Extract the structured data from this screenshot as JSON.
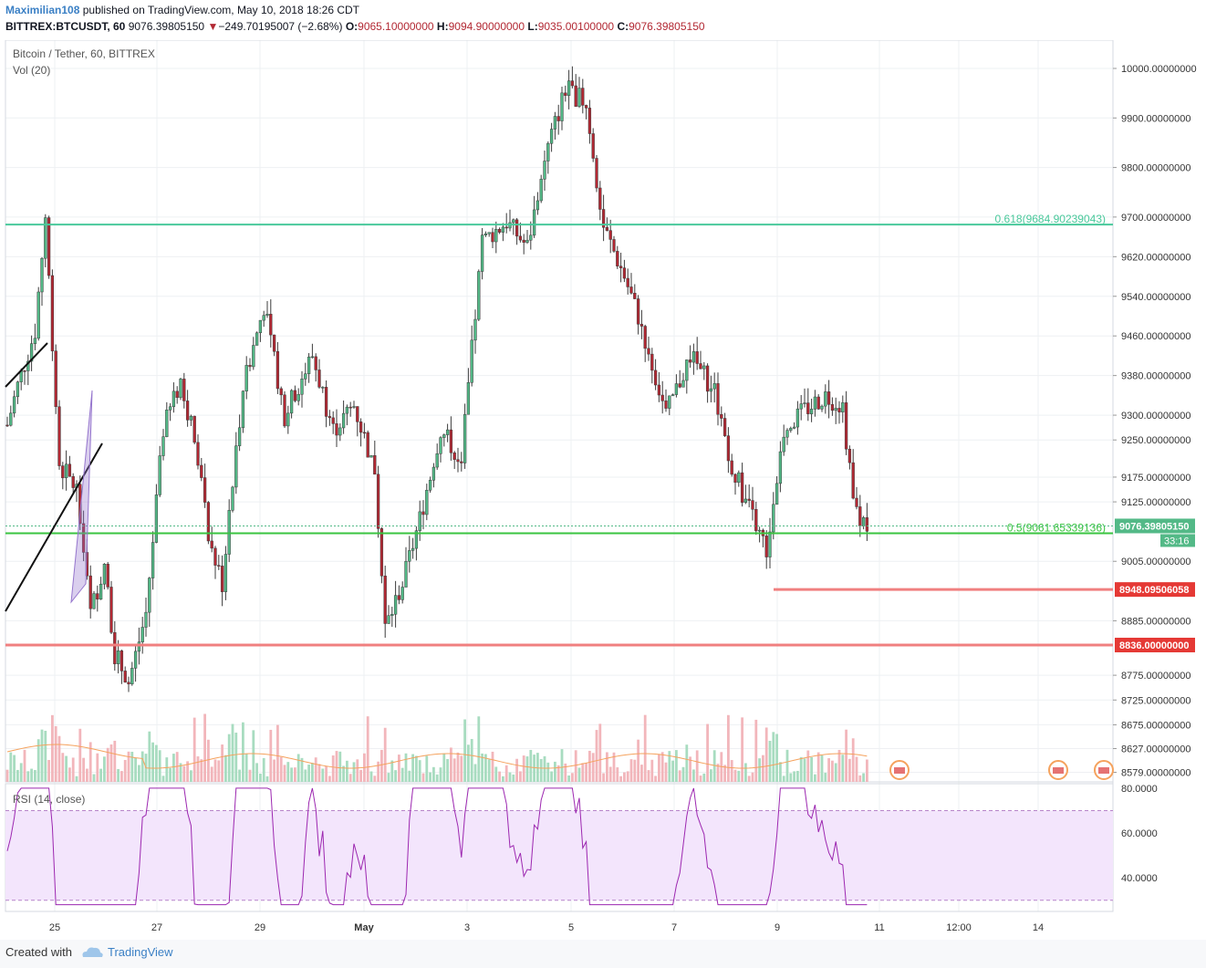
{
  "header": {
    "author": "Maximilian108",
    "published": "published on TradingView.com, May 10, 2018 18:26 CDT",
    "symbol": "BITTREX:BTCUSDT, 60",
    "last": "9076.39805150",
    "change_arrow": "▼",
    "change": "−249.70195007 (−2.68%)",
    "o_label": "O:",
    "o": "9065.10000000",
    "h_label": "H:",
    "h": "9094.90000000",
    "l_label": "L:",
    "l": "9035.00100000",
    "c_label": "C:",
    "c": "9076.39805150"
  },
  "pane": {
    "title": "Bitcoin / Tether, 60, BITTREX",
    "vol": "Vol (20)",
    "rsi_title": "RSI (14, close)"
  },
  "footer": {
    "created": "Created with",
    "brand": "TradingView",
    "brand_icon": "tradingview-cloud-icon"
  },
  "colors": {
    "up": "#53b987",
    "down": "#b22833",
    "fib618": "#49c99b",
    "fib05": "#3ac440",
    "support": "#f08080",
    "rsi": "#9c27b0",
    "rsi_band": "#f3e5fc"
  },
  "chart_data": {
    "type": "candlestick",
    "price_axis": {
      "ylim": [
        8579,
        10020
      ],
      "tick_labels": [
        "10000.00000000",
        "9900.00000000",
        "9800.00000000",
        "9700.00000000",
        "9620.00000000",
        "9540.00000000",
        "9460.00000000",
        "9380.00000000",
        "9300.00000000",
        "9250.00000000",
        "9175.00000000",
        "9125.00000000",
        "9005.00000000",
        "8885.00000000",
        "8775.00000000",
        "8725.00000000",
        "8675.00000000",
        "8627.00000000",
        "8579.00000000"
      ]
    },
    "time_axis": {
      "tick_labels": [
        "25",
        "27",
        "29",
        "May",
        "3",
        "5",
        "7",
        "9",
        "11",
        "12:00",
        "14"
      ]
    },
    "horizontal_levels": [
      {
        "label": "0.618(9684.90239043)",
        "value": 9684.90239043
      },
      {
        "label": "0.5(9061.65339136)",
        "value": 9061.65339136
      },
      {
        "label": "8948.09506058",
        "value": 8948.09506058
      },
      {
        "label": "8836.00000000",
        "value": 8836.0
      }
    ],
    "last_price_label": "9076.39805150",
    "countdown": "33:16",
    "anchor_points": [
      {
        "t": 0,
        "p": 9280
      },
      {
        "t": 3,
        "p": 9360
      },
      {
        "t": 8,
        "p": 9470
      },
      {
        "t": 11,
        "p": 9700
      },
      {
        "t": 15,
        "p": 9200
      },
      {
        "t": 20,
        "p": 9150
      },
      {
        "t": 24,
        "p": 8900
      },
      {
        "t": 28,
        "p": 9000
      },
      {
        "t": 31,
        "p": 8820
      },
      {
        "t": 35,
        "p": 8760
      },
      {
        "t": 40,
        "p": 8900
      },
      {
        "t": 45,
        "p": 9270
      },
      {
        "t": 50,
        "p": 9370
      },
      {
        "t": 55,
        "p": 9220
      },
      {
        "t": 58,
        "p": 9050
      },
      {
        "t": 62,
        "p": 8960
      },
      {
        "t": 68,
        "p": 9360
      },
      {
        "t": 74,
        "p": 9520
      },
      {
        "t": 80,
        "p": 9300
      },
      {
        "t": 88,
        "p": 9420
      },
      {
        "t": 94,
        "p": 9270
      },
      {
        "t": 100,
        "p": 9320
      },
      {
        "t": 106,
        "p": 9190
      },
      {
        "t": 109,
        "p": 8870
      },
      {
        "t": 114,
        "p": 8960
      },
      {
        "t": 119,
        "p": 9090
      },
      {
        "t": 125,
        "p": 9270
      },
      {
        "t": 131,
        "p": 9210
      },
      {
        "t": 137,
        "p": 9650
      },
      {
        "t": 144,
        "p": 9690
      },
      {
        "t": 150,
        "p": 9640
      },
      {
        "t": 156,
        "p": 9840
      },
      {
        "t": 161,
        "p": 9960
      },
      {
        "t": 167,
        "p": 9930
      },
      {
        "t": 172,
        "p": 9680
      },
      {
        "t": 178,
        "p": 9580
      },
      {
        "t": 183,
        "p": 9480
      },
      {
        "t": 190,
        "p": 9300
      },
      {
        "t": 197,
        "p": 9420
      },
      {
        "t": 204,
        "p": 9350
      },
      {
        "t": 209,
        "p": 9200
      },
      {
        "t": 214,
        "p": 9110
      },
      {
        "t": 219,
        "p": 9030
      },
      {
        "t": 224,
        "p": 9270
      },
      {
        "t": 230,
        "p": 9310
      },
      {
        "t": 236,
        "p": 9340
      },
      {
        "t": 241,
        "p": 9320
      },
      {
        "t": 244,
        "p": 9120
      },
      {
        "t": 248,
        "p": 9076
      }
    ],
    "rsi": {
      "ylim": [
        25,
        82
      ],
      "tick_labels": [
        "80.0000",
        "60.0000",
        "40.0000"
      ],
      "bands": [
        70,
        30
      ]
    }
  }
}
